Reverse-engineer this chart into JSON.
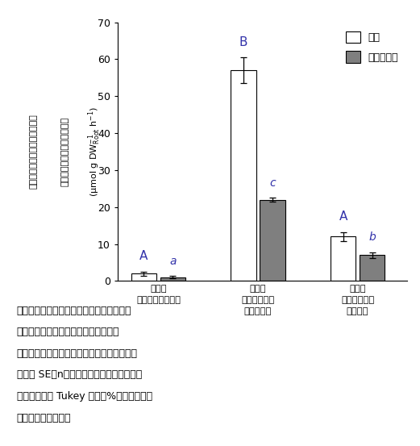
{
  "o2_values": [
    2.0,
    57.0,
    12.0
  ],
  "o2_errors": [
    0.5,
    3.5,
    1.2
  ],
  "co2_values": [
    1.0,
    22.0,
    7.0
  ],
  "co2_errors": [
    0.3,
    0.5,
    0.8
  ],
  "o2_color": "#ffffff",
  "co2_color": "#7f7f7f",
  "bar_edge_color": "#000000",
  "ylim": [
    0,
    70
  ],
  "yticks": [
    0,
    10,
    20,
    30,
    40,
    50,
    60,
    70
  ],
  "legend_o2": "酸素",
  "legend_co2": "二酸化炭素",
  "o2_stat_labels": [
    "A",
    "B",
    "A"
  ],
  "co2_stat_labels": [
    "a",
    "c",
    "b"
  ],
  "xtick_labels": [
    "対照区\n茎に通気組織なし",
    "湛水区\n通気組織有り\n（水面上）",
    "湛水区\n通気組織有り\n（冠水）"
  ],
  "ylabel_top": "ガス層における酸素の減少速度",
  "ylabel_bottom": "および二酸化炭素の上昇速度",
  "ylabel_unit": "(μmol g DW",
  "ylabel_unit2": "h⁻¹)",
  "cap1": "図２　通気組織を通じた根系への酸素供給",
  "cap2": "量および根系からの二酸化炭素排出量",
  "cap3": "注）図１のガス層には空気を充填している。",
  "cap4": "バーは SE（n＝３）を示す。同じアルファ",
  "cap5": "ベット間には Tukey 法で１%水準で有意差",
  "cap6": "がないことを示す。",
  "background_color": "#ffffff"
}
